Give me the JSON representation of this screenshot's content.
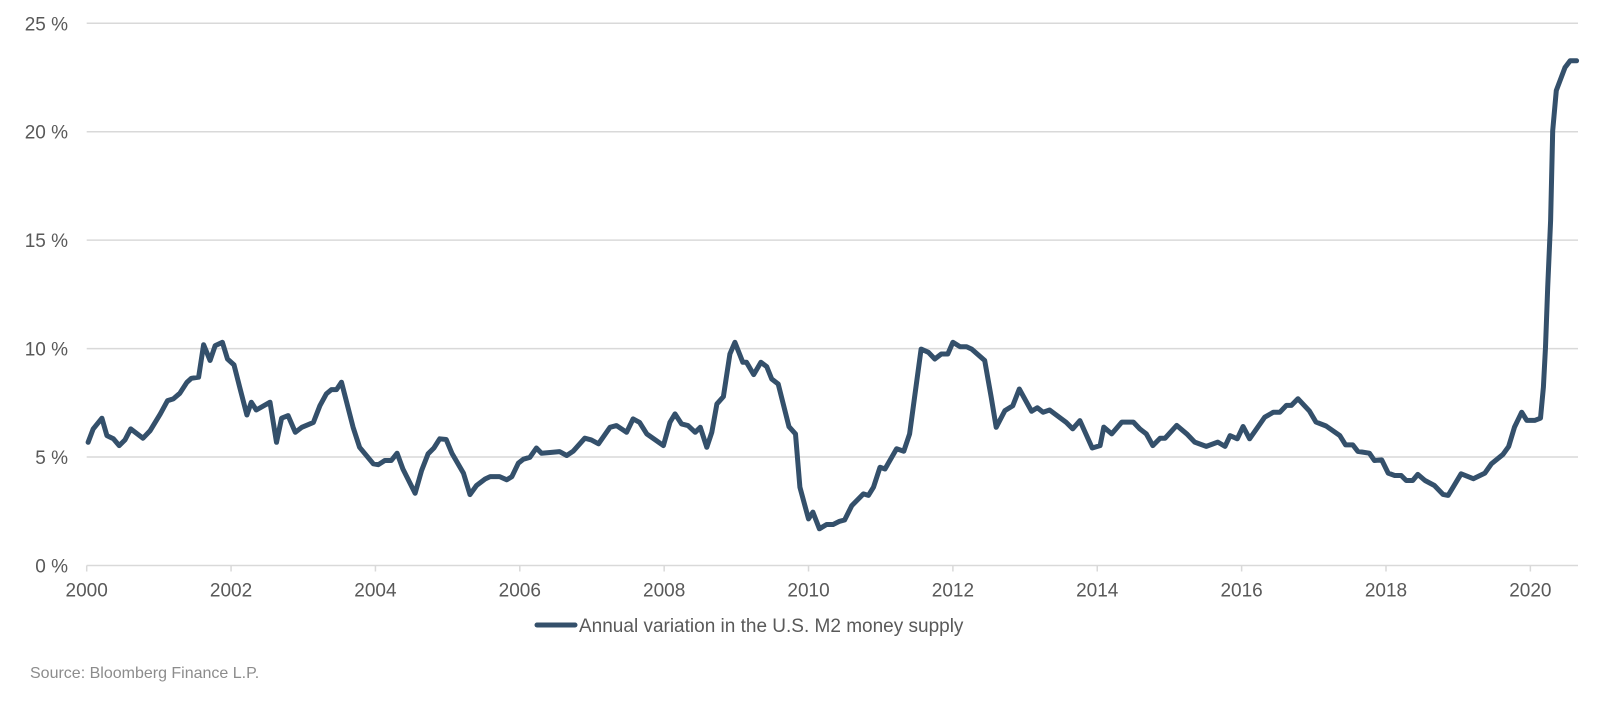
{
  "chart_data": {
    "type": "line",
    "title": "",
    "xlabel": "",
    "ylabel": "",
    "xlim": [
      2000,
      2020.66
    ],
    "ylim": [
      0,
      25
    ],
    "grid": true,
    "legend_position": "bottom-center",
    "x_ticks": [
      2000,
      2002,
      2004,
      2006,
      2008,
      2010,
      2012,
      2014,
      2016,
      2018,
      2020
    ],
    "x_tick_labels": [
      "2000",
      "2002",
      "2004",
      "2006",
      "2008",
      "2010",
      "2012",
      "2014",
      "2016",
      "2018",
      "2020"
    ],
    "y_ticks": [
      0,
      5,
      10,
      15,
      20,
      25
    ],
    "y_tick_labels": [
      "0 %",
      "5 %",
      "10 %",
      "15 %",
      "20 %",
      "25 %"
    ],
    "series": [
      {
        "name": "Annual variation in the U.S. M2 money supply",
        "color": "#34506b",
        "points": [
          [
            2000.02,
            5.68
          ],
          [
            2000.09,
            6.3
          ],
          [
            2000.21,
            6.79
          ],
          [
            2000.28,
            5.99
          ],
          [
            2000.37,
            5.84
          ],
          [
            2000.45,
            5.53
          ],
          [
            2000.53,
            5.79
          ],
          [
            2000.61,
            6.3
          ],
          [
            2000.78,
            5.87
          ],
          [
            2000.88,
            6.22
          ],
          [
            2001.02,
            6.99
          ],
          [
            2001.12,
            7.6
          ],
          [
            2001.2,
            7.68
          ],
          [
            2001.29,
            7.94
          ],
          [
            2001.39,
            8.45
          ],
          [
            2001.45,
            8.63
          ],
          [
            2001.55,
            8.68
          ],
          [
            2001.62,
            10.18
          ],
          [
            2001.71,
            9.45
          ],
          [
            2001.78,
            10.14
          ],
          [
            2001.88,
            10.29
          ],
          [
            2001.95,
            9.52
          ],
          [
            2002.04,
            9.25
          ],
          [
            2002.12,
            8.22
          ],
          [
            2002.22,
            6.94
          ],
          [
            2002.28,
            7.53
          ],
          [
            2002.35,
            7.17
          ],
          [
            2002.54,
            7.53
          ],
          [
            2002.63,
            5.68
          ],
          [
            2002.7,
            6.79
          ],
          [
            2002.79,
            6.91
          ],
          [
            2002.89,
            6.14
          ],
          [
            2002.98,
            6.37
          ],
          [
            2003.14,
            6.6
          ],
          [
            2003.23,
            7.37
          ],
          [
            2003.32,
            7.91
          ],
          [
            2003.39,
            8.11
          ],
          [
            2003.46,
            8.11
          ],
          [
            2003.53,
            8.45
          ],
          [
            2003.69,
            6.37
          ],
          [
            2003.78,
            5.45
          ],
          [
            2003.97,
            4.69
          ],
          [
            2004.04,
            4.65
          ],
          [
            2004.13,
            4.84
          ],
          [
            2004.22,
            4.84
          ],
          [
            2004.3,
            5.18
          ],
          [
            2004.38,
            4.45
          ],
          [
            2004.55,
            3.33
          ],
          [
            2004.64,
            4.38
          ],
          [
            2004.73,
            5.15
          ],
          [
            2004.81,
            5.42
          ],
          [
            2004.89,
            5.84
          ],
          [
            2004.98,
            5.81
          ],
          [
            2005.06,
            5.18
          ],
          [
            2005.22,
            4.25
          ],
          [
            2005.31,
            3.27
          ],
          [
            2005.4,
            3.69
          ],
          [
            2005.52,
            3.99
          ],
          [
            2005.59,
            4.1
          ],
          [
            2005.72,
            4.1
          ],
          [
            2005.82,
            3.95
          ],
          [
            2005.89,
            4.1
          ],
          [
            2005.98,
            4.72
          ],
          [
            2006.05,
            4.9
          ],
          [
            2006.14,
            4.99
          ],
          [
            2006.23,
            5.42
          ],
          [
            2006.3,
            5.18
          ],
          [
            2006.42,
            5.21
          ],
          [
            2006.55,
            5.25
          ],
          [
            2006.65,
            5.07
          ],
          [
            2006.74,
            5.27
          ],
          [
            2006.9,
            5.87
          ],
          [
            2006.99,
            5.79
          ],
          [
            2007.09,
            5.61
          ],
          [
            2007.25,
            6.37
          ],
          [
            2007.34,
            6.45
          ],
          [
            2007.48,
            6.14
          ],
          [
            2007.57,
            6.76
          ],
          [
            2007.66,
            6.6
          ],
          [
            2007.76,
            6.07
          ],
          [
            2007.99,
            5.53
          ],
          [
            2008.08,
            6.6
          ],
          [
            2008.15,
            6.99
          ],
          [
            2008.24,
            6.53
          ],
          [
            2008.33,
            6.45
          ],
          [
            2008.43,
            6.14
          ],
          [
            2008.5,
            6.37
          ],
          [
            2008.59,
            5.45
          ],
          [
            2008.66,
            6.14
          ],
          [
            2008.73,
            7.45
          ],
          [
            2008.82,
            7.79
          ],
          [
            2008.91,
            9.75
          ],
          [
            2008.98,
            10.29
          ],
          [
            2009.09,
            9.37
          ],
          [
            2009.14,
            9.37
          ],
          [
            2009.24,
            8.8
          ],
          [
            2009.34,
            9.37
          ],
          [
            2009.42,
            9.17
          ],
          [
            2009.49,
            8.6
          ],
          [
            2009.58,
            8.37
          ],
          [
            2009.73,
            6.4
          ],
          [
            2009.82,
            6.07
          ],
          [
            2009.88,
            3.61
          ],
          [
            2010.0,
            2.15
          ],
          [
            2010.06,
            2.46
          ],
          [
            2010.15,
            1.69
          ],
          [
            2010.25,
            1.89
          ],
          [
            2010.34,
            1.89
          ],
          [
            2010.43,
            2.04
          ],
          [
            2010.5,
            2.1
          ],
          [
            2010.6,
            2.76
          ],
          [
            2010.76,
            3.3
          ],
          [
            2010.83,
            3.23
          ],
          [
            2010.9,
            3.61
          ],
          [
            2010.99,
            4.53
          ],
          [
            2011.06,
            4.45
          ],
          [
            2011.22,
            5.38
          ],
          [
            2011.32,
            5.27
          ],
          [
            2011.4,
            6.07
          ],
          [
            2011.56,
            9.98
          ],
          [
            2011.66,
            9.83
          ],
          [
            2011.75,
            9.52
          ],
          [
            2011.84,
            9.75
          ],
          [
            2011.93,
            9.75
          ],
          [
            2012.0,
            10.29
          ],
          [
            2012.1,
            10.09
          ],
          [
            2012.19,
            10.09
          ],
          [
            2012.26,
            9.98
          ],
          [
            2012.44,
            9.45
          ],
          [
            2012.53,
            7.76
          ],
          [
            2012.6,
            6.37
          ],
          [
            2012.72,
            7.14
          ],
          [
            2012.83,
            7.37
          ],
          [
            2012.92,
            8.14
          ],
          [
            2013.09,
            7.11
          ],
          [
            2013.17,
            7.27
          ],
          [
            2013.25,
            7.07
          ],
          [
            2013.34,
            7.17
          ],
          [
            2013.57,
            6.6
          ],
          [
            2013.66,
            6.3
          ],
          [
            2013.76,
            6.68
          ],
          [
            2013.93,
            5.42
          ],
          [
            2014.04,
            5.53
          ],
          [
            2014.09,
            6.38
          ],
          [
            2014.2,
            6.07
          ],
          [
            2014.34,
            6.61
          ],
          [
            2014.5,
            6.61
          ],
          [
            2014.59,
            6.3
          ],
          [
            2014.68,
            6.07
          ],
          [
            2014.77,
            5.53
          ],
          [
            2014.87,
            5.87
          ],
          [
            2014.94,
            5.87
          ],
          [
            2015.1,
            6.46
          ],
          [
            2015.24,
            6.07
          ],
          [
            2015.35,
            5.69
          ],
          [
            2015.51,
            5.49
          ],
          [
            2015.67,
            5.69
          ],
          [
            2015.77,
            5.49
          ],
          [
            2015.84,
            5.99
          ],
          [
            2015.94,
            5.84
          ],
          [
            2016.02,
            6.41
          ],
          [
            2016.11,
            5.84
          ],
          [
            2016.32,
            6.84
          ],
          [
            2016.44,
            7.07
          ],
          [
            2016.53,
            7.07
          ],
          [
            2016.62,
            7.38
          ],
          [
            2016.69,
            7.38
          ],
          [
            2016.78,
            7.69
          ],
          [
            2016.94,
            7.12
          ],
          [
            2017.03,
            6.61
          ],
          [
            2017.17,
            6.43
          ],
          [
            2017.36,
            5.99
          ],
          [
            2017.44,
            5.56
          ],
          [
            2017.54,
            5.56
          ],
          [
            2017.61,
            5.26
          ],
          [
            2017.77,
            5.18
          ],
          [
            2017.84,
            4.84
          ],
          [
            2017.94,
            4.87
          ],
          [
            2018.03,
            4.26
          ],
          [
            2018.12,
            4.15
          ],
          [
            2018.21,
            4.15
          ],
          [
            2018.28,
            3.92
          ],
          [
            2018.37,
            3.92
          ],
          [
            2018.44,
            4.2
          ],
          [
            2018.54,
            3.92
          ],
          [
            2018.67,
            3.69
          ],
          [
            2018.79,
            3.28
          ],
          [
            2018.86,
            3.23
          ],
          [
            2018.93,
            3.61
          ],
          [
            2019.04,
            4.23
          ],
          [
            2019.21,
            4.0
          ],
          [
            2019.37,
            4.26
          ],
          [
            2019.46,
            4.69
          ],
          [
            2019.62,
            5.12
          ],
          [
            2019.7,
            5.49
          ],
          [
            2019.78,
            6.38
          ],
          [
            2019.88,
            7.07
          ],
          [
            2019.95,
            6.69
          ],
          [
            2020.06,
            6.69
          ],
          [
            2020.14,
            6.79
          ],
          [
            2020.18,
            8.22
          ],
          [
            2020.21,
            10.07
          ],
          [
            2020.24,
            12.83
          ],
          [
            2020.28,
            15.9
          ],
          [
            2020.31,
            20.05
          ],
          [
            2020.36,
            21.9
          ],
          [
            2020.48,
            22.96
          ],
          [
            2020.55,
            23.27
          ],
          [
            2020.64,
            23.27
          ]
        ]
      }
    ],
    "source": "Source: Bloomberg Finance L.P."
  }
}
